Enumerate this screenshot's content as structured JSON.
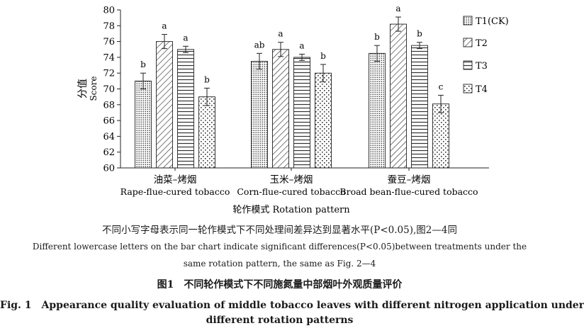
{
  "chart_data": {
    "type": "bar",
    "ylabel_zh": "分值",
    "ylabel_en": "Score",
    "xlabel": "轮作模式 Rotation pattern",
    "ylim": [
      60,
      80
    ],
    "yticks": [
      "60",
      "62",
      "64",
      "66",
      "68",
      "70",
      "72",
      "74",
      "76",
      "78",
      "80"
    ],
    "categories": [
      {
        "zh": "油菜–烤烟",
        "en": "Rape-flue-cured tobacco"
      },
      {
        "zh": "玉米–烤烟",
        "en": "Corn-flue-cured tobacco"
      },
      {
        "zh": "蚕豆–烤烟",
        "en": "Broad bean-flue-cured tobacco"
      }
    ],
    "series": [
      {
        "name": "T1(CK)",
        "pattern": "dots",
        "values": [
          71.0,
          73.5,
          74.5
        ],
        "errors": [
          1.0,
          1.0,
          1.0
        ],
        "letters": [
          "b",
          "ab",
          "b"
        ]
      },
      {
        "name": "T2",
        "pattern": "diagonal",
        "values": [
          76.0,
          75.0,
          78.2
        ],
        "errors": [
          0.9,
          0.9,
          0.9
        ],
        "letters": [
          "a",
          "a",
          "a"
        ]
      },
      {
        "name": "T3",
        "pattern": "horizontal",
        "values": [
          75.0,
          74.0,
          75.5
        ],
        "errors": [
          0.4,
          0.4,
          0.4
        ],
        "letters": [
          "a",
          "a",
          "b"
        ]
      },
      {
        "name": "T4",
        "pattern": "sparse-dots",
        "values": [
          69.0,
          72.0,
          68.1
        ],
        "errors": [
          1.1,
          1.1,
          1.1
        ],
        "letters": [
          "b",
          "b",
          "c"
        ]
      }
    ],
    "legend_position": "right",
    "grid": false
  },
  "notes": {
    "zh": "不同小写字母表示同一轮作模式下不同处理间差异达到显著水平(P<0.05),图2—4同",
    "en_line1": "Different lowercase letters on the bar chart indicate significant differences(P<0.05)between treatments under the",
    "en_line2": "same rotation pattern, the same as Fig. 2—4"
  },
  "caption": {
    "zh": "图1　不同轮作模式下不同施氮量中部烟叶外观质量评价",
    "en_line1": "Fig. 1　Appearance quality evaluation of middle tobacco leaves with different nitrogen application under",
    "en_line2": "different rotation patterns"
  }
}
